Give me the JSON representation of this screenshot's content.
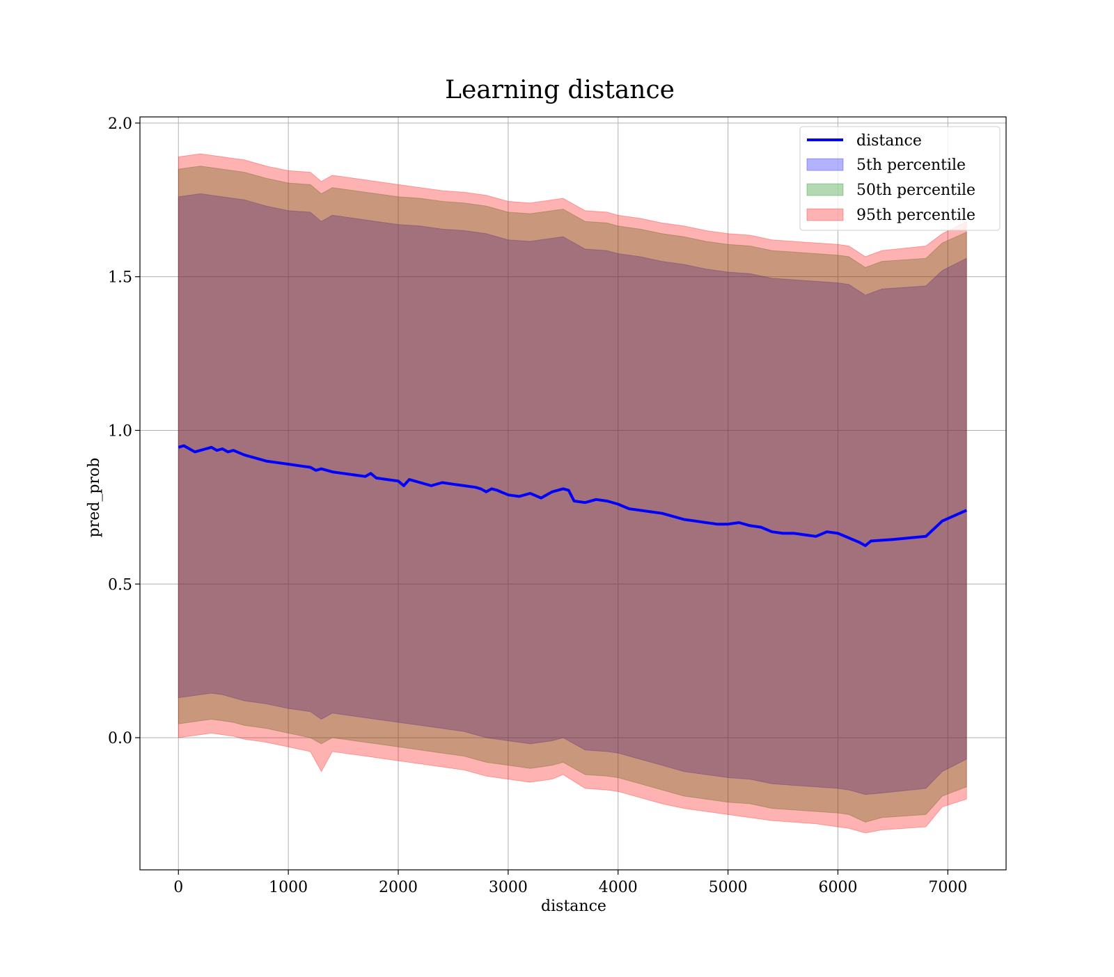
{
  "chart_data": {
    "type": "line",
    "title": "Learning distance",
    "xlabel": "distance",
    "ylabel": "pred_prob",
    "xlim": [
      -350,
      7530
    ],
    "ylim": [
      -0.43,
      2.02
    ],
    "xticks": [
      0,
      1000,
      2000,
      3000,
      4000,
      5000,
      6000,
      7000
    ],
    "yticks": [
      0.0,
      0.5,
      1.0,
      1.5,
      2.0
    ],
    "xtick_labels": [
      "0",
      "1000",
      "2000",
      "3000",
      "4000",
      "5000",
      "6000",
      "7000"
    ],
    "ytick_labels": [
      "0.0",
      "0.5",
      "1.0",
      "1.5",
      "2.0"
    ],
    "grid": true,
    "legend_position": "top-right",
    "legend": [
      "distance",
      "5th percentile",
      "50th percentile",
      "95th percentile"
    ],
    "colors": {
      "line": "#0000ff",
      "band_5th": "#0000ff",
      "band_50th": "#008000",
      "band_95th": "#ff0000",
      "band_fill_opacity": 0.3
    },
    "series": [
      {
        "name": "distance",
        "x": [
          0,
          50,
          100,
          150,
          200,
          250,
          300,
          350,
          400,
          450,
          500,
          600,
          700,
          800,
          900,
          1000,
          1100,
          1200,
          1250,
          1300,
          1400,
          1500,
          1600,
          1700,
          1750,
          1800,
          1900,
          2000,
          2050,
          2100,
          2200,
          2300,
          2400,
          2500,
          2600,
          2700,
          2750,
          2800,
          2850,
          2900,
          3000,
          3100,
          3200,
          3300,
          3400,
          3500,
          3550,
          3600,
          3700,
          3800,
          3900,
          4000,
          4100,
          4200,
          4300,
          4400,
          4500,
          4600,
          4700,
          4800,
          4900,
          5000,
          5100,
          5200,
          5300,
          5400,
          5500,
          5600,
          5700,
          5800,
          5900,
          6000,
          6100,
          6200,
          6250,
          6300,
          6500,
          6800,
          6950,
          7170
        ],
        "y": [
          0.945,
          0.95,
          0.94,
          0.93,
          0.935,
          0.94,
          0.945,
          0.935,
          0.94,
          0.93,
          0.935,
          0.92,
          0.91,
          0.9,
          0.895,
          0.89,
          0.885,
          0.88,
          0.87,
          0.875,
          0.865,
          0.86,
          0.855,
          0.85,
          0.86,
          0.845,
          0.84,
          0.835,
          0.82,
          0.84,
          0.83,
          0.82,
          0.83,
          0.825,
          0.82,
          0.815,
          0.81,
          0.8,
          0.81,
          0.805,
          0.79,
          0.785,
          0.795,
          0.78,
          0.8,
          0.81,
          0.805,
          0.77,
          0.765,
          0.775,
          0.77,
          0.76,
          0.745,
          0.74,
          0.735,
          0.73,
          0.72,
          0.71,
          0.705,
          0.7,
          0.695,
          0.695,
          0.7,
          0.69,
          0.685,
          0.67,
          0.665,
          0.665,
          0.66,
          0.655,
          0.67,
          0.665,
          0.65,
          0.635,
          0.625,
          0.64,
          0.645,
          0.655,
          0.705,
          0.74
        ]
      },
      {
        "name": "5th percentile",
        "x": [
          0,
          100,
          200,
          300,
          400,
          500,
          600,
          800,
          1000,
          1200,
          1300,
          1400,
          1600,
          1800,
          2000,
          2200,
          2400,
          2600,
          2800,
          3000,
          3200,
          3400,
          3500,
          3700,
          3900,
          4000,
          4200,
          4400,
          4600,
          4800,
          5000,
          5200,
          5400,
          5600,
          5800,
          6000,
          6100,
          6250,
          6400,
          6800,
          6950,
          7170
        ],
        "lower": [
          0.13,
          0.135,
          0.14,
          0.145,
          0.14,
          0.13,
          0.12,
          0.11,
          0.095,
          0.085,
          0.06,
          0.08,
          0.07,
          0.06,
          0.05,
          0.04,
          0.03,
          0.02,
          0.0,
          -0.01,
          -0.02,
          -0.01,
          0.0,
          -0.04,
          -0.045,
          -0.05,
          -0.07,
          -0.09,
          -0.11,
          -0.12,
          -0.13,
          -0.135,
          -0.15,
          -0.155,
          -0.16,
          -0.165,
          -0.17,
          -0.185,
          -0.18,
          -0.165,
          -0.11,
          -0.07
        ],
        "upper": [
          1.76,
          1.765,
          1.77,
          1.765,
          1.76,
          1.755,
          1.75,
          1.73,
          1.715,
          1.71,
          1.68,
          1.7,
          1.69,
          1.68,
          1.67,
          1.665,
          1.655,
          1.65,
          1.64,
          1.62,
          1.615,
          1.625,
          1.63,
          1.59,
          1.585,
          1.575,
          1.565,
          1.55,
          1.54,
          1.525,
          1.515,
          1.51,
          1.495,
          1.49,
          1.485,
          1.48,
          1.475,
          1.44,
          1.46,
          1.47,
          1.52,
          1.56
        ]
      },
      {
        "name": "50th percentile",
        "x": [
          0,
          100,
          200,
          300,
          400,
          500,
          600,
          800,
          1000,
          1200,
          1300,
          1400,
          1600,
          1800,
          2000,
          2200,
          2400,
          2600,
          2800,
          3000,
          3200,
          3400,
          3500,
          3700,
          3900,
          4000,
          4200,
          4400,
          4600,
          4800,
          5000,
          5200,
          5400,
          5600,
          5800,
          6000,
          6100,
          6250,
          6400,
          6800,
          6950,
          7170
        ],
        "lower": [
          0.045,
          0.05,
          0.055,
          0.06,
          0.055,
          0.05,
          0.04,
          0.03,
          0.015,
          0.0,
          -0.02,
          0.0,
          -0.01,
          -0.02,
          -0.03,
          -0.04,
          -0.05,
          -0.06,
          -0.08,
          -0.09,
          -0.1,
          -0.09,
          -0.08,
          -0.12,
          -0.125,
          -0.13,
          -0.15,
          -0.17,
          -0.19,
          -0.2,
          -0.21,
          -0.215,
          -0.23,
          -0.235,
          -0.24,
          -0.245,
          -0.25,
          -0.275,
          -0.26,
          -0.25,
          -0.19,
          -0.16
        ],
        "upper": [
          1.85,
          1.855,
          1.86,
          1.855,
          1.85,
          1.845,
          1.84,
          1.82,
          1.805,
          1.8,
          1.77,
          1.79,
          1.78,
          1.77,
          1.76,
          1.755,
          1.745,
          1.74,
          1.73,
          1.71,
          1.705,
          1.715,
          1.72,
          1.68,
          1.675,
          1.665,
          1.655,
          1.64,
          1.63,
          1.615,
          1.605,
          1.6,
          1.585,
          1.58,
          1.575,
          1.57,
          1.565,
          1.53,
          1.55,
          1.56,
          1.61,
          1.645
        ]
      },
      {
        "name": "95th percentile",
        "x": [
          0,
          100,
          200,
          300,
          400,
          500,
          600,
          800,
          1000,
          1200,
          1300,
          1400,
          1600,
          1800,
          2000,
          2200,
          2400,
          2600,
          2800,
          3000,
          3200,
          3400,
          3500,
          3700,
          3900,
          4000,
          4200,
          4400,
          4600,
          4800,
          5000,
          5200,
          5400,
          5600,
          5800,
          6000,
          6100,
          6250,
          6400,
          6800,
          6950,
          7170
        ],
        "lower": [
          0.0,
          0.005,
          0.01,
          0.015,
          0.01,
          0.005,
          -0.005,
          -0.015,
          -0.03,
          -0.045,
          -0.11,
          -0.045,
          -0.055,
          -0.065,
          -0.075,
          -0.085,
          -0.095,
          -0.105,
          -0.125,
          -0.135,
          -0.145,
          -0.135,
          -0.12,
          -0.165,
          -0.17,
          -0.175,
          -0.195,
          -0.215,
          -0.23,
          -0.24,
          -0.25,
          -0.26,
          -0.27,
          -0.275,
          -0.28,
          -0.29,
          -0.295,
          -0.31,
          -0.3,
          -0.29,
          -0.225,
          -0.2
        ],
        "upper": [
          1.89,
          1.895,
          1.9,
          1.895,
          1.89,
          1.885,
          1.88,
          1.86,
          1.845,
          1.84,
          1.81,
          1.83,
          1.82,
          1.81,
          1.8,
          1.79,
          1.78,
          1.775,
          1.765,
          1.745,
          1.74,
          1.75,
          1.755,
          1.715,
          1.71,
          1.7,
          1.69,
          1.675,
          1.665,
          1.65,
          1.64,
          1.635,
          1.62,
          1.615,
          1.61,
          1.605,
          1.6,
          1.565,
          1.585,
          1.6,
          1.64,
          1.68
        ]
      }
    ]
  }
}
